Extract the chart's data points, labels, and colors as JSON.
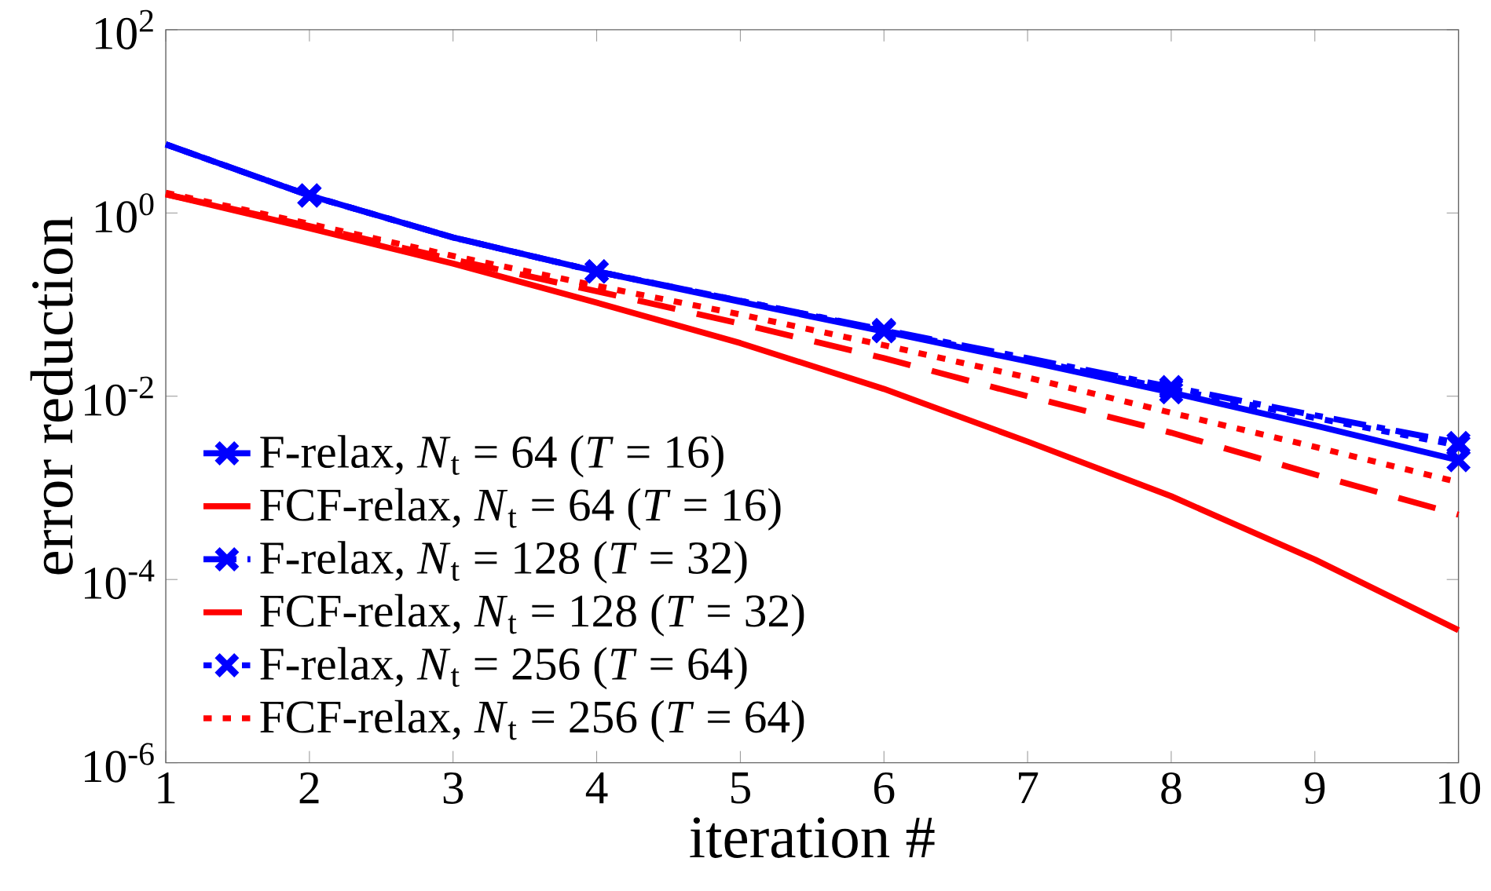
{
  "chart_data": {
    "type": "line",
    "xlabel": "iteration #",
    "ylabel": "error reduction",
    "x": [
      1,
      2,
      3,
      4,
      5,
      6,
      7,
      8,
      9,
      10
    ],
    "series": [
      {
        "name": "F-relax,      *N*$_{t}$ = 64   (*T* = 16)",
        "color": "#0000ff",
        "marker": "cross",
        "line_style": "solid",
        "values": [
          5.6,
          1.55,
          0.54,
          0.23,
          0.107,
          0.051,
          0.024,
          0.011,
          0.0048,
          0.002
        ]
      },
      {
        "name": "FCF-relax, *N*$_{t}$ = 64   (*T* = 16)",
        "color": "#ff0000",
        "marker": "none",
        "line_style": "solid",
        "values": [
          1.6,
          0.68,
          0.28,
          0.105,
          0.038,
          0.012,
          0.0032,
          0.00081,
          0.000165,
          2.8e-05
        ]
      },
      {
        "name": "F-relax,      *N*$_{t}$ = 128 (*T* = 32)",
        "color": "#0000ff",
        "marker": "cross",
        "line_style": "dashdot",
        "values": [
          5.6,
          1.55,
          0.54,
          0.23,
          0.11,
          0.053,
          0.026,
          0.0126,
          0.0062,
          0.0031
        ]
      },
      {
        "name": "FCF-relax, *N*$_{t}$ = 128 (*T* = 32)",
        "color": "#ff0000",
        "marker": "none",
        "line_style": "dashed",
        "values": [
          1.6,
          0.72,
          0.31,
          0.14,
          0.062,
          0.026,
          0.01,
          0.004,
          0.0014,
          0.00051
        ]
      },
      {
        "name": "F-relax,      *N*$_{t}$ = 256 (*T* = 64)",
        "color": "#0000ff",
        "marker": "cross",
        "line_style": "dotted",
        "values": [
          5.6,
          1.55,
          0.54,
          0.23,
          0.11,
          0.052,
          0.025,
          0.012,
          0.0058,
          0.0029
        ]
      },
      {
        "name": "FCF-relax, *N*$_{t}$ = 256 (*T* = 64)",
        "color": "#ff0000",
        "marker": "none",
        "line_style": "dotted",
        "values": [
          1.66,
          0.76,
          0.34,
          0.16,
          0.078,
          0.036,
          0.016,
          0.0066,
          0.0028,
          0.00115
        ]
      }
    ],
    "log": "y",
    "xlim": [
      1,
      10
    ],
    "ylim": [
      1e-06,
      100
    ],
    "xticks": [
      1,
      2,
      3,
      4,
      5,
      6,
      7,
      8,
      9,
      10
    ],
    "yticks": [
      {
        "value": 1e-06,
        "label": "10$^{-6}$"
      },
      {
        "value": 0.0001,
        "label": "10$^{-4}$"
      },
      {
        "value": 0.01,
        "label": "10$^{-2}$"
      },
      {
        "value": 1,
        "label": "10$^{0}$"
      },
      {
        "value": 100,
        "label": "10$^{2}$"
      }
    ],
    "legend": "bottom left",
    "grid": false
  }
}
